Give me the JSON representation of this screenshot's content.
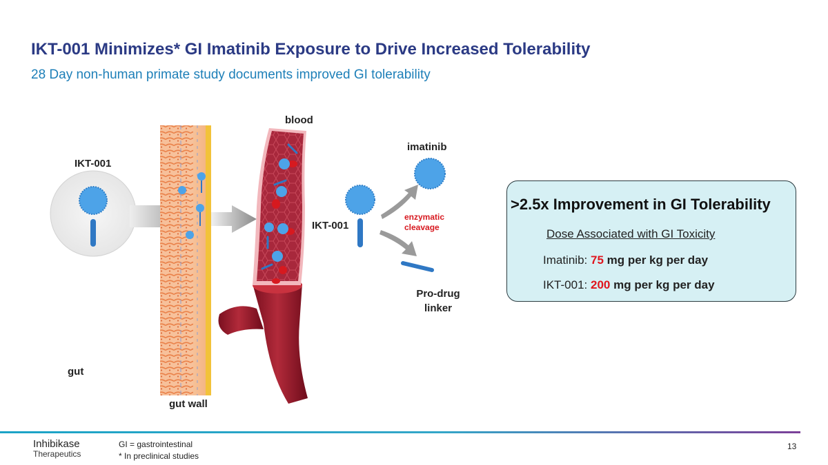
{
  "header": {
    "title": "IKT-001 Minimizes* GI Imatinib Exposure to Drive Increased Tolerability",
    "subtitle": "28 Day non-human primate study documents improved GI tolerability"
  },
  "diagram": {
    "label_ikt001_left": "IKT-001",
    "label_blood": "blood",
    "label_imatinib": "imatinib",
    "label_ikt001_right": "IKT-001",
    "label_enzymatic": "enzymatic",
    "label_cleavage": "cleavage",
    "label_prodrug_line1": "Pro-drug",
    "label_prodrug_line2": "linker",
    "label_gut": "gut",
    "label_gut_wall": "gut wall"
  },
  "callout": {
    "heading": ">2.5x Improvement in GI Tolerability",
    "subheading": "Dose Associated with GI Toxicity",
    "rows": [
      {
        "drug": "Imatinib:",
        "dose": "75",
        "unit": "mg per kg per day"
      },
      {
        "drug": "IKT-001:",
        "dose": "200",
        "unit": "mg per kg per day"
      }
    ]
  },
  "footer": {
    "logo_line1": "Inhibikase",
    "logo_line2": "Therapeutics",
    "footnote1": "GI = gastrointestinal",
    "footnote2": "* In preclinical studies",
    "page_number": "13"
  },
  "colors": {
    "title": "#2b3a84",
    "subtitle": "#1d7fb8",
    "accent_red": "#e0161e",
    "molecule_blue": "#4da3e8",
    "vessel_red": "#9e1c2e",
    "callout_fill": "#d6f0f4"
  }
}
